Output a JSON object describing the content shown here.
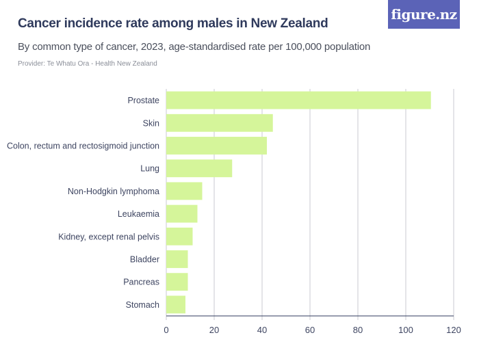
{
  "header": {
    "title": "Cancer incidence rate among males in New Zealand",
    "subtitle": "By common type of cancer, 2023, age-standardised rate per 100,000 population",
    "provider": "Provider: Te Whatu Ora - Health New Zealand",
    "logo_text": "figure.nz"
  },
  "colors": {
    "bar": "#d5f59a",
    "grid": "#c8cad0",
    "axis": "#2f3a5c",
    "logo_bg": "#5b63b7"
  },
  "chart_data": {
    "type": "bar",
    "orientation": "horizontal",
    "categories": [
      "Prostate",
      "Skin",
      "Colon, rectum and rectosigmoid junction",
      "Lung",
      "Non-Hodgkin lymphoma",
      "Leukaemia",
      "Kidney, except renal pelvis",
      "Bladder",
      "Pancreas",
      "Stomach"
    ],
    "values": [
      110.5,
      44.5,
      42,
      27.5,
      15,
      13,
      11,
      9,
      9,
      8
    ],
    "xlim": [
      0,
      120
    ],
    "xticks": [
      0,
      20,
      40,
      60,
      80,
      100,
      120
    ],
    "grid": true
  }
}
